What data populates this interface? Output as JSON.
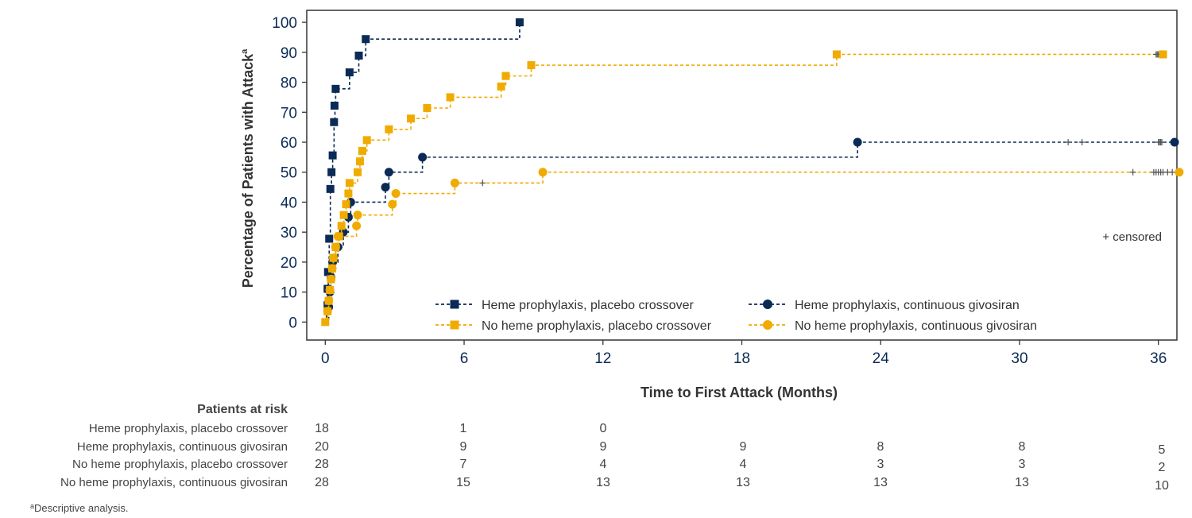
{
  "chart_data": {
    "type": "line",
    "subtype": "kaplan-meier step plot",
    "ylabel": "Percentage of Patients with Attack",
    "ylabel_superscript": "a",
    "xlabel": "Time to First Attack (Months)",
    "xlim": [
      -0.8,
      36.8
    ],
    "ylim": [
      -6,
      104
    ],
    "x_ticks": [
      0,
      6,
      12,
      18,
      24,
      30,
      36
    ],
    "y_ticks": [
      0,
      10,
      20,
      30,
      40,
      50,
      60,
      70,
      80,
      90,
      100
    ],
    "grid": false,
    "legend_position": "bottom-right inside plot",
    "censored_note": "+ censored",
    "colors": {
      "navy": "#0b2a55",
      "gold": "#f0ab00",
      "axis": "#333333",
      "text": "#222222"
    },
    "series": [
      {
        "name": "Heme prophylaxis, placebo crossover",
        "color": "#0b2a55",
        "marker": "square",
        "steps": [
          [
            0,
            0
          ],
          [
            0.05,
            5.6
          ],
          [
            0.1,
            11.1
          ],
          [
            0.13,
            16.7
          ],
          [
            0.17,
            27.8
          ],
          [
            0.22,
            44.4
          ],
          [
            0.27,
            50
          ],
          [
            0.32,
            55.6
          ],
          [
            0.38,
            66.7
          ],
          [
            0.42,
            72.2
          ],
          [
            0.45,
            77.8
          ],
          [
            1.05,
            83.3
          ],
          [
            1.45,
            88.9
          ],
          [
            1.75,
            94.4
          ],
          [
            8.4,
            100
          ]
        ],
        "markers": [
          [
            0.1,
            5.6
          ],
          [
            0.1,
            11.1
          ],
          [
            0.12,
            16.7
          ],
          [
            0.17,
            27.8
          ],
          [
            0.22,
            44.4
          ],
          [
            0.27,
            50
          ],
          [
            0.32,
            55.6
          ],
          [
            0.38,
            66.7
          ],
          [
            0.4,
            72.2
          ],
          [
            0.45,
            77.8
          ],
          [
            1.05,
            83.3
          ],
          [
            1.45,
            88.9
          ],
          [
            1.75,
            94.4
          ],
          [
            8.4,
            100
          ]
        ],
        "censored": []
      },
      {
        "name": "Heme prophylaxis, continuous givosiran",
        "color": "#0b2a55",
        "marker": "circle",
        "steps": [
          [
            0,
            0
          ],
          [
            0.15,
            5
          ],
          [
            0.2,
            10
          ],
          [
            0.25,
            15
          ],
          [
            0.32,
            20
          ],
          [
            0.55,
            25
          ],
          [
            0.78,
            30
          ],
          [
            1.0,
            35
          ],
          [
            1.1,
            40
          ],
          [
            2.6,
            45
          ],
          [
            2.75,
            50
          ],
          [
            4.2,
            55
          ],
          [
            23.0,
            60
          ]
        ],
        "markers": [
          [
            0.15,
            5
          ],
          [
            0.2,
            10
          ],
          [
            0.25,
            15
          ],
          [
            0.32,
            20
          ],
          [
            0.55,
            25
          ],
          [
            0.78,
            30
          ],
          [
            1.0,
            35
          ],
          [
            1.1,
            40
          ],
          [
            2.6,
            45
          ],
          [
            2.75,
            50
          ],
          [
            4.2,
            55
          ],
          [
            23.0,
            60
          ],
          [
            36.7,
            60
          ]
        ],
        "censored": [
          32.1,
          32.7,
          36.0,
          36.05,
          36.1,
          36.15
        ]
      },
      {
        "name": "No heme prophylaxis, placebo crossover",
        "color": "#f0ab00",
        "marker": "square",
        "steps": [
          [
            0,
            0
          ],
          [
            0.1,
            3.6
          ],
          [
            0.15,
            7.1
          ],
          [
            0.2,
            10.7
          ],
          [
            0.25,
            14.3
          ],
          [
            0.3,
            17.9
          ],
          [
            0.35,
            21.4
          ],
          [
            0.45,
            25
          ],
          [
            0.6,
            28.6
          ],
          [
            0.7,
            32.1
          ],
          [
            0.8,
            35.7
          ],
          [
            0.9,
            39.3
          ],
          [
            1.0,
            42.9
          ],
          [
            1.05,
            46.4
          ],
          [
            1.4,
            50
          ],
          [
            1.5,
            53.6
          ],
          [
            1.6,
            57.1
          ],
          [
            1.8,
            60.7
          ],
          [
            2.75,
            64.3
          ],
          [
            3.7,
            67.9
          ],
          [
            4.4,
            71.4
          ],
          [
            5.4,
            75
          ],
          [
            7.6,
            78.6
          ],
          [
            7.8,
            82.1
          ],
          [
            8.9,
            85.7
          ],
          [
            22.1,
            89.3
          ]
        ],
        "markers": [
          [
            0,
            0
          ],
          [
            0.1,
            3.6
          ],
          [
            0.15,
            7.1
          ],
          [
            0.2,
            10.7
          ],
          [
            0.25,
            14.3
          ],
          [
            0.3,
            17.9
          ],
          [
            0.35,
            21.4
          ],
          [
            0.45,
            25
          ],
          [
            0.6,
            28.6
          ],
          [
            0.7,
            32.1
          ],
          [
            0.8,
            35.7
          ],
          [
            0.9,
            39.3
          ],
          [
            1.0,
            42.9
          ],
          [
            1.05,
            46.4
          ],
          [
            1.4,
            50
          ],
          [
            1.5,
            53.6
          ],
          [
            1.6,
            57.1
          ],
          [
            1.8,
            60.7
          ],
          [
            2.75,
            64.3
          ],
          [
            3.7,
            67.9
          ],
          [
            4.4,
            71.4
          ],
          [
            5.4,
            75
          ],
          [
            7.6,
            78.6
          ],
          [
            7.8,
            82.1
          ],
          [
            8.9,
            85.7
          ],
          [
            22.1,
            89.3
          ],
          [
            36.2,
            89.3
          ]
        ],
        "censored": [
          35.9,
          35.95,
          36.0,
          36.05
        ]
      },
      {
        "name": "No heme prophylaxis, continuous givosiran",
        "color": "#f0ab00",
        "marker": "circle",
        "steps": [
          [
            0,
            0
          ],
          [
            0.1,
            3.6
          ],
          [
            0.15,
            7.1
          ],
          [
            0.2,
            10.7
          ],
          [
            0.25,
            14.3
          ],
          [
            0.3,
            17.9
          ],
          [
            0.35,
            21.4
          ],
          [
            0.45,
            25
          ],
          [
            0.55,
            28.6
          ],
          [
            1.35,
            32.1
          ],
          [
            1.4,
            35.7
          ],
          [
            2.9,
            39.3
          ],
          [
            3.05,
            42.9
          ],
          [
            5.6,
            46.4
          ],
          [
            9.4,
            50
          ]
        ],
        "markers": [
          [
            0.1,
            3.6
          ],
          [
            0.15,
            7.1
          ],
          [
            0.2,
            10.7
          ],
          [
            0.25,
            14.3
          ],
          [
            0.3,
            17.9
          ],
          [
            0.35,
            21.4
          ],
          [
            0.45,
            25
          ],
          [
            0.55,
            28.6
          ],
          [
            1.35,
            32.1
          ],
          [
            1.4,
            35.7
          ],
          [
            2.9,
            39.3
          ],
          [
            3.05,
            42.9
          ],
          [
            5.6,
            46.4
          ],
          [
            9.4,
            50
          ],
          [
            36.9,
            50
          ]
        ],
        "censored": [
          6.8,
          34.9,
          35.8,
          35.9,
          36.0,
          36.1,
          36.2,
          36.4,
          36.6
        ]
      }
    ],
    "risk_table": {
      "title": "Patients at risk",
      "times": [
        0,
        6,
        12,
        18,
        24,
        30,
        36
      ],
      "rows": [
        {
          "label": "Heme prophylaxis, placebo crossover",
          "values": [
            "18",
            "1",
            "0",
            "",
            "",
            "",
            ""
          ]
        },
        {
          "label": "Heme prophylaxis, continuous givosiran",
          "values": [
            "20",
            "9",
            "9",
            "9",
            "8",
            "8",
            "5"
          ]
        },
        {
          "label": "No heme prophylaxis, placebo crossover",
          "values": [
            "28",
            "7",
            "4",
            "4",
            "3",
            "3",
            "2"
          ]
        },
        {
          "label": "No heme prophylaxis, continuous givosiran",
          "values": [
            "28",
            "15",
            "13",
            "13",
            "13",
            "13",
            "10"
          ]
        }
      ]
    },
    "footnote_superscript": "a",
    "footnote": "Descriptive analysis."
  }
}
